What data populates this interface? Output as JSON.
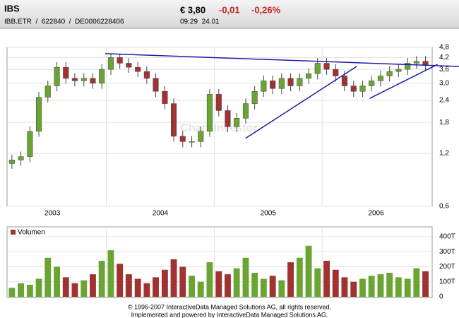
{
  "header": {
    "symbol": "IBS",
    "identifiers": "IBB.ETR  /  622840  /  DE0006228406",
    "price": "€ 3,80",
    "change": "-0,01",
    "change_pct": "-0,26%",
    "time": "09:29  24.01"
  },
  "chart_data": {
    "type": "candlestick",
    "watermark": "Chart-Investor",
    "x": [
      2003.125,
      2003.208,
      2003.292,
      2003.375,
      2003.458,
      2003.542,
      2003.625,
      2003.708,
      2003.792,
      2003.875,
      2003.958,
      2004.042,
      2004.125,
      2004.208,
      2004.292,
      2004.375,
      2004.458,
      2004.542,
      2004.625,
      2004.708,
      2004.792,
      2004.875,
      2004.958,
      2005.042,
      2005.125,
      2005.208,
      2005.292,
      2005.375,
      2005.458,
      2005.542,
      2005.625,
      2005.708,
      2005.792,
      2005.875,
      2005.958,
      2006.042,
      2006.125,
      2006.208,
      2006.292,
      2006.375,
      2006.458,
      2006.542,
      2006.625,
      2006.708,
      2006.792,
      2006.875,
      2006.958
    ],
    "open": [
      1.05,
      1.1,
      1.15,
      1.6,
      2.5,
      2.9,
      3.7,
      3.2,
      3.1,
      3.2,
      3.0,
      3.6,
      4.2,
      3.9,
      3.7,
      3.5,
      3.2,
      2.7,
      2.3,
      1.5,
      1.4,
      1.4,
      1.6,
      2.6,
      2.1,
      1.7,
      1.9,
      2.3,
      2.7,
      3.1,
      2.8,
      3.2,
      2.9,
      3.2,
      3.4,
      3.9,
      3.6,
      3.3,
      2.9,
      2.7,
      2.9,
      3.1,
      3.3,
      3.5,
      3.6,
      3.9,
      4.0
    ],
    "high": [
      1.18,
      1.23,
      1.71,
      2.68,
      3.1,
      3.96,
      3.96,
      3.42,
      3.42,
      3.42,
      3.85,
      4.4,
      4.4,
      4.17,
      3.96,
      3.75,
      3.42,
      2.89,
      2.46,
      1.61,
      1.5,
      1.71,
      2.78,
      2.78,
      2.25,
      2.03,
      2.46,
      2.89,
      3.32,
      3.32,
      3.42,
      3.42,
      3.42,
      3.64,
      4.17,
      4.17,
      3.85,
      3.53,
      3.1,
      3.1,
      3.32,
      3.53,
      3.75,
      3.85,
      4.17,
      4.28,
      4.28
    ],
    "low": [
      0.98,
      1.02,
      1.07,
      1.49,
      2.33,
      2.7,
      2.98,
      2.88,
      2.88,
      2.79,
      2.79,
      3.35,
      3.63,
      3.44,
      3.26,
      2.98,
      2.51,
      2.14,
      1.4,
      1.3,
      1.3,
      1.3,
      1.49,
      1.95,
      1.58,
      1.58,
      1.77,
      2.14,
      2.51,
      2.6,
      2.6,
      2.7,
      2.7,
      2.98,
      3.16,
      3.35,
      3.07,
      2.7,
      2.51,
      2.51,
      2.7,
      2.88,
      3.07,
      3.26,
      3.35,
      3.63,
      3.53
    ],
    "close": [
      1.1,
      1.15,
      1.6,
      2.5,
      2.9,
      3.7,
      3.2,
      3.1,
      3.2,
      3.0,
      3.6,
      4.2,
      3.9,
      3.7,
      3.5,
      3.2,
      2.7,
      2.3,
      1.5,
      1.4,
      1.4,
      1.6,
      2.6,
      2.1,
      1.7,
      1.9,
      2.3,
      2.7,
      3.1,
      2.8,
      3.2,
      2.9,
      3.2,
      3.4,
      3.9,
      3.6,
      3.3,
      2.9,
      2.7,
      2.9,
      3.1,
      3.3,
      3.5,
      3.6,
      3.9,
      4.0,
      3.8
    ],
    "up_color": "#6aa533",
    "down_color": "#a03232",
    "xlim": [
      2003.08,
      2007.02
    ],
    "xticks": [
      {
        "value": 2003.5,
        "label": "2003"
      },
      {
        "value": 2004.5,
        "label": "2004"
      },
      {
        "value": 2005.5,
        "label": "2005"
      },
      {
        "value": 2006.5,
        "label": "2006"
      }
    ],
    "xgrid": [
      2004,
      2005,
      2006
    ],
    "ylim": [
      0.6,
      4.8
    ],
    "log_scale": true,
    "grid": true,
    "yticks": [
      {
        "value": 0.6,
        "label": "0,6"
      },
      {
        "value": 1.2,
        "label": "1,2"
      },
      {
        "value": 1.8,
        "label": "1,8"
      },
      {
        "value": 2.4,
        "label": "2,4"
      },
      {
        "value": 3.0,
        "label": "3,0"
      },
      {
        "value": 3.6,
        "label": "3,6"
      },
      {
        "value": 4.2,
        "label": "4,2"
      },
      {
        "value": 4.8,
        "label": "4,8"
      }
    ],
    "trendline_color": "#1c1ca8",
    "trendlines": [
      {
        "x": [
          2003.99,
          2007.27
        ],
        "y": [
          4.42,
          3.74
        ]
      },
      {
        "x": [
          2005.29,
          2006.32
        ],
        "y": [
          1.46,
          3.74
        ]
      },
      {
        "x": [
          2006.44,
          2007.07
        ],
        "y": [
          2.46,
          3.84
        ]
      }
    ],
    "volume": {
      "name": "Volumen",
      "color": "#a03232",
      "values": [
        60000,
        90000,
        80000,
        120000,
        260000,
        200000,
        130000,
        90000,
        110000,
        150000,
        240000,
        310000,
        220000,
        150000,
        120000,
        90000,
        130000,
        180000,
        250000,
        200000,
        140000,
        100000,
        230000,
        170000,
        150000,
        190000,
        260000,
        160000,
        120000,
        140000,
        110000,
        230000,
        260000,
        340000,
        190000,
        240000,
        180000,
        130000,
        100000,
        120000,
        140000,
        150000,
        160000,
        130000,
        120000,
        190000,
        170000
      ],
      "ylim": [
        0,
        400000
      ],
      "yticks": [
        0,
        {
          "value": 100000,
          "label": "100T"
        },
        {
          "value": 200000,
          "label": "200T"
        },
        {
          "value": 300000,
          "label": "300T"
        },
        {
          "value": 400000,
          "label": "400T"
        }
      ]
    }
  },
  "footer": {
    "line1": "© 1996-2007 InteractiveData Managed Solutions  AG, all rights reserved.",
    "line2": "Implemented and powered by  InteractiveData Managed Solutions  AG."
  }
}
